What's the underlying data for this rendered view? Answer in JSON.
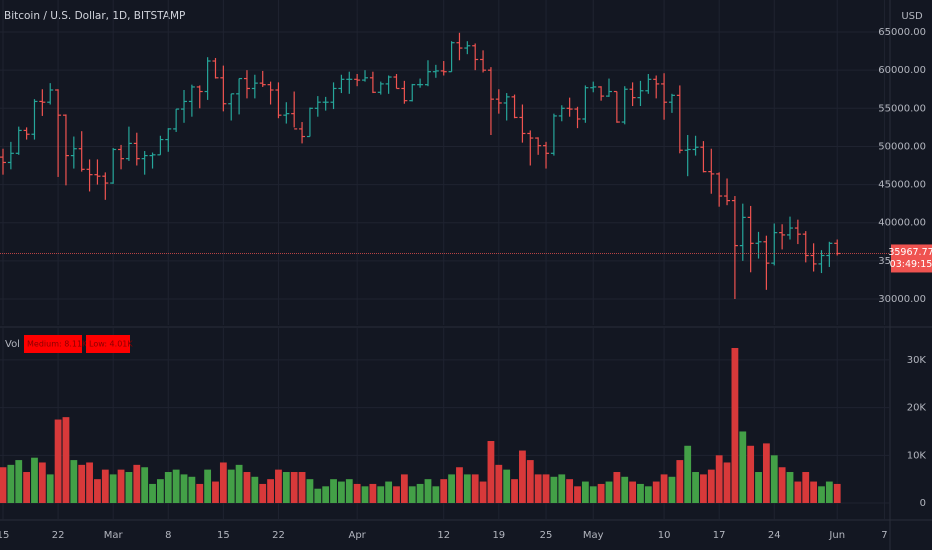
{
  "header": {
    "symbol": "Bitcoin / U.S. Dollar, 1D, BITSTAMP",
    "currency": "USD"
  },
  "chart_data": [
    {
      "type": "ohlc",
      "up_color": "#26a69a",
      "down_color": "#ef5350",
      "x": [
        "02-15",
        "02-16",
        "02-17",
        "02-18",
        "02-19",
        "02-20",
        "02-21",
        "02-22",
        "02-23",
        "02-24",
        "02-25",
        "02-26",
        "02-27",
        "02-28",
        "03-01",
        "03-02",
        "03-03",
        "03-04",
        "03-05",
        "03-06",
        "03-07",
        "03-08",
        "03-09",
        "03-10",
        "03-11",
        "03-12",
        "03-13",
        "03-14",
        "03-15",
        "03-16",
        "03-17",
        "03-18",
        "03-19",
        "03-20",
        "03-21",
        "03-22",
        "03-23",
        "03-24",
        "03-25",
        "03-26",
        "03-27",
        "03-28",
        "03-29",
        "03-30",
        "03-31",
        "04-01",
        "04-02",
        "04-03",
        "04-04",
        "04-05",
        "04-06",
        "04-07",
        "04-08",
        "04-09",
        "04-10",
        "04-11",
        "04-12",
        "04-13",
        "04-14",
        "04-15",
        "04-16",
        "04-17",
        "04-18",
        "04-19",
        "04-20",
        "04-21",
        "04-22",
        "04-23",
        "04-24",
        "04-25",
        "04-26",
        "04-27",
        "04-28",
        "04-29",
        "04-30",
        "05-01",
        "05-02",
        "05-03",
        "05-04",
        "05-05",
        "05-06",
        "05-07",
        "05-08",
        "05-09",
        "05-10",
        "05-11",
        "05-12",
        "05-13",
        "05-14",
        "05-15",
        "05-16",
        "05-17",
        "05-18",
        "05-19",
        "05-20",
        "05-21",
        "05-22",
        "05-23",
        "05-24",
        "05-25",
        "05-26",
        "05-27",
        "05-28",
        "05-29",
        "05-30",
        "05-31",
        "06-01"
      ],
      "values": [
        [
          48600,
          49700,
          46300,
          47900
        ],
        [
          47900,
          50600,
          47000,
          49100
        ],
        [
          49100,
          52600,
          48900,
          52100
        ],
        [
          52100,
          52500,
          50900,
          51600
        ],
        [
          51600,
          56200,
          50900,
          55900
        ],
        [
          55900,
          57500,
          54000,
          55800
        ],
        [
          55800,
          58300,
          55500,
          57400
        ],
        [
          57400,
          57500,
          46000,
          54100
        ],
        [
          54100,
          54200,
          44900,
          48800
        ],
        [
          48800,
          51300,
          47100,
          49700
        ],
        [
          49700,
          52000,
          46700,
          47000
        ],
        [
          47000,
          48300,
          44100,
          46300
        ],
        [
          46300,
          48300,
          45000,
          46100
        ],
        [
          46100,
          46600,
          43000,
          45200
        ],
        [
          45200,
          49800,
          45100,
          49600
        ],
        [
          49600,
          50200,
          47000,
          48400
        ],
        [
          48400,
          52600,
          48100,
          50400
        ],
        [
          50400,
          51800,
          47500,
          48400
        ],
        [
          48400,
          49400,
          46300,
          48800
        ],
        [
          48800,
          49200,
          47100,
          48900
        ],
        [
          48900,
          51400,
          48900,
          50900
        ],
        [
          50900,
          52400,
          49300,
          52300
        ],
        [
          52300,
          54900,
          51900,
          54900
        ],
        [
          54900,
          57400,
          53100,
          55900
        ],
        [
          55900,
          58100,
          53900,
          57800
        ],
        [
          57800,
          58000,
          55000,
          57200
        ],
        [
          57200,
          61700,
          56100,
          61200
        ],
        [
          61200,
          61600,
          58900,
          59000
        ],
        [
          59000,
          60600,
          54600,
          55600
        ],
        [
          55600,
          56900,
          53400,
          56900
        ],
        [
          56900,
          58900,
          54200,
          58900
        ],
        [
          58900,
          60000,
          56300,
          57600
        ],
        [
          57600,
          59400,
          56300,
          58300
        ],
        [
          58300,
          59900,
          57800,
          58100
        ],
        [
          58100,
          58500,
          55500,
          57400
        ],
        [
          57400,
          58400,
          53700,
          54100
        ],
        [
          54100,
          55800,
          53000,
          54300
        ],
        [
          54300,
          57200,
          52500,
          52300
        ],
        [
          52300,
          53200,
          50400,
          51300
        ],
        [
          51300,
          55100,
          51300,
          55000
        ],
        [
          55000,
          56600,
          53900,
          55800
        ],
        [
          55800,
          56500,
          54700,
          55800
        ],
        [
          55800,
          58400,
          54900,
          57600
        ],
        [
          57600,
          59400,
          57000,
          58800
        ],
        [
          58800,
          59800,
          56900,
          58800
        ],
        [
          58800,
          59500,
          57900,
          58700
        ],
        [
          58700,
          60000,
          58500,
          59000
        ],
        [
          59000,
          59800,
          57000,
          57100
        ],
        [
          57100,
          58500,
          56800,
          58200
        ],
        [
          58200,
          59300,
          56900,
          59100
        ],
        [
          59100,
          59500,
          57600,
          57600
        ],
        [
          57600,
          58600,
          55600,
          56000
        ],
        [
          56000,
          58200,
          55900,
          58100
        ],
        [
          58100,
          58900,
          57700,
          58100
        ],
        [
          58100,
          61300,
          57900,
          59800
        ],
        [
          59800,
          60700,
          59000,
          59900
        ],
        [
          59900,
          61200,
          59300,
          59800
        ],
        [
          59800,
          63800,
          59800,
          63600
        ],
        [
          63600,
          64900,
          61300,
          62900
        ],
        [
          62900,
          63800,
          62100,
          63200
        ],
        [
          63200,
          63500,
          60000,
          61400
        ],
        [
          61400,
          62600,
          59700,
          60000
        ],
        [
          60000,
          60400,
          51500,
          56200
        ],
        [
          56200,
          57500,
          54300,
          55700
        ],
        [
          55700,
          57000,
          53400,
          56500
        ],
        [
          56500,
          56800,
          53700,
          53800
        ],
        [
          53800,
          55500,
          50500,
          51700
        ],
        [
          51700,
          52100,
          47500,
          51100
        ],
        [
          51100,
          51200,
          48900,
          50100
        ],
        [
          50100,
          50600,
          47100,
          49100
        ],
        [
          49100,
          54300,
          48800,
          54000
        ],
        [
          54000,
          55400,
          53300,
          55000
        ],
        [
          55000,
          56400,
          53900,
          54900
        ],
        [
          54900,
          55200,
          52400,
          53600
        ],
        [
          53600,
          58000,
          53100,
          57700
        ],
        [
          57700,
          58500,
          57100,
          57800
        ],
        [
          57800,
          57900,
          56000,
          56600
        ],
        [
          56600,
          58900,
          56500,
          57200
        ],
        [
          57200,
          57200,
          53100,
          53200
        ],
        [
          53200,
          57900,
          52900,
          57500
        ],
        [
          57500,
          58400,
          55300,
          56400
        ],
        [
          56400,
          58600,
          55300,
          57300
        ],
        [
          57300,
          59500,
          56900,
          58800
        ],
        [
          58800,
          59300,
          56300,
          58200
        ],
        [
          58200,
          59600,
          53500,
          55800
        ],
        [
          55800,
          56900,
          54400,
          56700
        ],
        [
          56700,
          58000,
          49100,
          49500
        ],
        [
          49500,
          51500,
          46100,
          49600
        ],
        [
          49600,
          51400,
          48800,
          49900
        ],
        [
          49900,
          50700,
          46600,
          46700
        ],
        [
          46700,
          49700,
          43800,
          46400
        ],
        [
          46400,
          46600,
          42100,
          43500
        ],
        [
          43500,
          45800,
          42300,
          42900
        ],
        [
          42900,
          43500,
          30000,
          37000
        ],
        [
          37000,
          42500,
          35000,
          40700
        ],
        [
          40700,
          42200,
          33500,
          37300
        ],
        [
          37300,
          38800,
          35300,
          37500
        ],
        [
          37500,
          38300,
          31200,
          34700
        ],
        [
          34700,
          39900,
          34400,
          38700
        ],
        [
          38700,
          39800,
          36500,
          38400
        ],
        [
          38400,
          40800,
          37800,
          39300
        ],
        [
          39300,
          40400,
          37200,
          38500
        ],
        [
          38500,
          38900,
          34800,
          35700
        ],
        [
          35700,
          37300,
          33600,
          34600
        ],
        [
          34600,
          36400,
          33400,
          35700
        ],
        [
          35700,
          37500,
          34200,
          37300
        ],
        [
          37300,
          37800,
          35700,
          35967.77
        ]
      ],
      "ylim": [
        26590,
        69200
      ],
      "yticks": [
        {
          "value": 30000,
          "label": "30000.00"
        },
        {
          "value": 35000,
          "label": "35000.00"
        },
        {
          "value": 40000,
          "label": "40000.00"
        },
        {
          "value": 45000,
          "label": "45000.00"
        },
        {
          "value": 50000,
          "label": "50000.00"
        },
        {
          "value": 55000,
          "label": "55000.00"
        },
        {
          "value": 60000,
          "label": "60000.00"
        },
        {
          "value": 65000,
          "label": "65000.00"
        }
      ],
      "last_price": {
        "value": 35967.77,
        "label": "35967.77"
      },
      "countdown": "03:49:15",
      "xticks": [
        {
          "value": "02-15",
          "label": "15"
        },
        {
          "value": "02-22",
          "label": "22"
        },
        {
          "value": "03-01",
          "label": "Mar"
        },
        {
          "value": "03-08",
          "label": "8"
        },
        {
          "value": "03-15",
          "label": "15"
        },
        {
          "value": "03-22",
          "label": "22"
        },
        {
          "value": "04-01",
          "label": "Apr"
        },
        {
          "value": "04-12",
          "label": "12"
        },
        {
          "value": "04-19",
          "label": "19"
        },
        {
          "value": "04-25",
          "label": "25"
        },
        {
          "value": "05-01",
          "label": "May"
        },
        {
          "value": "05-10",
          "label": "10"
        },
        {
          "value": "05-17",
          "label": "17"
        },
        {
          "value": "05-24",
          "label": "24"
        },
        {
          "value": "06-01",
          "label": "Jun"
        },
        {
          "value": "06-07",
          "label": "7"
        }
      ],
      "grid": true
    },
    {
      "type": "bar",
      "title": "Vol",
      "badges": [
        "Medium: 8.11K",
        "Low: 4.01K"
      ],
      "badge_color": "#ff0000",
      "up_color": "#43a047",
      "down_color": "#d8393a",
      "values": [
        7500,
        8000,
        9000,
        6500,
        9500,
        8500,
        6000,
        17500,
        18000,
        9000,
        8000,
        8500,
        5000,
        7000,
        6000,
        7000,
        6500,
        8000,
        7500,
        4000,
        5000,
        6500,
        7000,
        6000,
        5500,
        4000,
        7000,
        4500,
        8500,
        7000,
        8000,
        6500,
        5500,
        4000,
        5000,
        7000,
        6500,
        6500,
        6500,
        5000,
        3000,
        3500,
        5000,
        4500,
        5000,
        4000,
        3500,
        4000,
        3500,
        4500,
        3500,
        6000,
        3500,
        4000,
        5000,
        3500,
        5000,
        6000,
        7500,
        6000,
        6000,
        4500,
        13000,
        8000,
        7000,
        5000,
        11000,
        9000,
        6000,
        6000,
        5500,
        6000,
        5000,
        3500,
        4500,
        3500,
        4000,
        4500,
        6500,
        5500,
        4500,
        4000,
        3500,
        4500,
        6000,
        5500,
        9000,
        12000,
        6500,
        6000,
        7000,
        10000,
        8500,
        32500,
        15000,
        12000,
        6500,
        12500,
        10000,
        7500,
        6500,
        4500,
        6500,
        4500,
        3500,
        4500,
        4000
      ],
      "ylim": [
        -3560,
        36690
      ],
      "yticks": [
        0,
        {
          "value": 10000,
          "label": "10K"
        },
        {
          "value": 20000,
          "label": "20K"
        },
        {
          "value": 30000,
          "label": "30K"
        }
      ],
      "grid": true
    }
  ]
}
